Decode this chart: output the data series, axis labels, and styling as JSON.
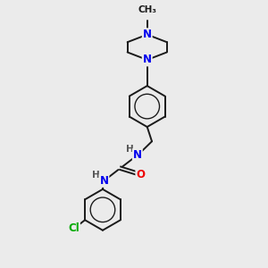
{
  "background_color": "#ebebeb",
  "bond_color": "#1a1a1a",
  "N_color": "#0000ee",
  "O_color": "#ee0000",
  "Cl_color": "#00aa00",
  "H_color": "#555555",
  "figsize": [
    3.0,
    3.0
  ],
  "dpi": 100,
  "xlim": [
    0,
    10
  ],
  "ylim": [
    0,
    10
  ]
}
